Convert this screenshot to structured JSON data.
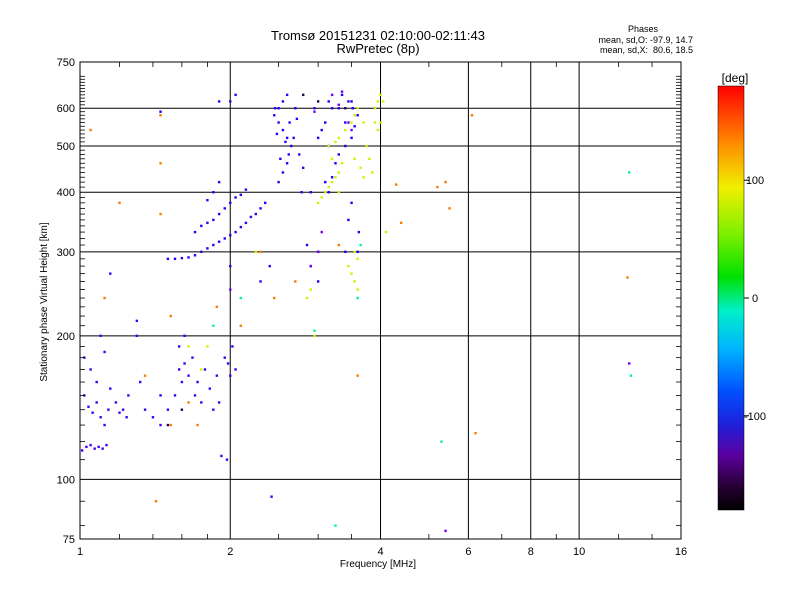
{
  "chart_data": {
    "type": "scatter",
    "title": "Tromsø 20151231 02:10:00-02:11:43",
    "subtitle": "RwPretec (8p)",
    "xlabel": "Frequency [MHz]",
    "ylabel": "Stationary phase Virtual Height [km]",
    "xscale": "log",
    "yscale": "log",
    "xlim": [
      1,
      16
    ],
    "ylim": [
      75,
      750
    ],
    "xticks": [
      1,
      2,
      4,
      6,
      8,
      10,
      16
    ],
    "yticks": [
      75,
      100,
      200,
      300,
      400,
      500,
      600,
      750
    ],
    "grid": true,
    "stats": {
      "heading": "Phases",
      "line1": "mean, sd,O: -97.9, 14.7",
      "line2": "mean, sd,X:  80.6, 18.5"
    },
    "colorbar": {
      "label": "[deg]",
      "range": [
        -180,
        180
      ],
      "ticks": [
        100,
        0,
        -100
      ],
      "colormap": "rainbow"
    },
    "point_groups": [
      {
        "phase": -110,
        "points": [
          [
            1.01,
            115
          ],
          [
            1.03,
            117
          ],
          [
            1.05,
            118
          ],
          [
            1.07,
            116
          ],
          [
            1.09,
            117
          ],
          [
            1.11,
            116
          ],
          [
            1.13,
            118
          ],
          [
            1.02,
            150
          ],
          [
            1.04,
            142
          ],
          [
            1.06,
            138
          ],
          [
            1.08,
            145
          ],
          [
            1.1,
            135
          ],
          [
            1.12,
            130
          ],
          [
            1.14,
            140
          ],
          [
            1.05,
            170
          ],
          [
            1.08,
            160
          ],
          [
            1.15,
            155
          ],
          [
            1.18,
            145
          ],
          [
            1.2,
            138
          ],
          [
            1.22,
            140
          ],
          [
            1.24,
            135
          ],
          [
            1.25,
            150
          ],
          [
            1.1,
            200
          ],
          [
            1.12,
            185
          ],
          [
            1.02,
            180
          ],
          [
            1.15,
            270
          ],
          [
            1.32,
            160
          ],
          [
            1.35,
            140
          ],
          [
            1.4,
            135
          ],
          [
            1.3,
            215
          ],
          [
            1.3,
            200
          ],
          [
            1.45,
            130
          ],
          [
            1.5,
            140
          ],
          [
            1.55,
            150
          ],
          [
            1.58,
            170
          ],
          [
            1.6,
            160
          ],
          [
            1.62,
            175
          ],
          [
            1.65,
            165
          ],
          [
            1.68,
            180
          ],
          [
            1.7,
            150
          ],
          [
            1.72,
            160
          ],
          [
            1.75,
            145
          ],
          [
            1.78,
            170
          ],
          [
            1.82,
            155
          ],
          [
            1.85,
            140
          ],
          [
            1.88,
            165
          ],
          [
            1.9,
            145
          ],
          [
            1.95,
            180
          ],
          [
            1.98,
            175
          ],
          [
            2.0,
            165
          ],
          [
            2.02,
            190
          ],
          [
            2.05,
            170
          ],
          [
            1.92,
            112
          ],
          [
            1.97,
            110
          ],
          [
            1.62,
            200
          ],
          [
            1.58,
            190
          ],
          [
            2.42,
            92
          ]
        ]
      },
      {
        "phase": -105,
        "points": [
          [
            1.5,
            290
          ],
          [
            1.55,
            290
          ],
          [
            1.6,
            291
          ],
          [
            1.65,
            292
          ],
          [
            1.7,
            295
          ],
          [
            1.75,
            300
          ],
          [
            1.8,
            305
          ],
          [
            1.85,
            310
          ],
          [
            1.9,
            315
          ],
          [
            1.95,
            320
          ],
          [
            2.0,
            325
          ],
          [
            2.05,
            330
          ],
          [
            2.1,
            338
          ],
          [
            2.15,
            345
          ],
          [
            2.2,
            355
          ],
          [
            2.25,
            360
          ],
          [
            2.3,
            370
          ],
          [
            2.35,
            380
          ],
          [
            1.7,
            330
          ],
          [
            1.75,
            340
          ],
          [
            1.8,
            345
          ],
          [
            1.85,
            350
          ],
          [
            1.9,
            360
          ],
          [
            1.95,
            370
          ],
          [
            2.0,
            380
          ],
          [
            2.05,
            390
          ],
          [
            2.1,
            395
          ],
          [
            2.15,
            405
          ],
          [
            1.8,
            385
          ],
          [
            1.85,
            400
          ],
          [
            1.9,
            420
          ],
          [
            2.5,
            420
          ],
          [
            2.55,
            440
          ],
          [
            2.6,
            460
          ],
          [
            2.62,
            480
          ],
          [
            2.65,
            500
          ],
          [
            2.6,
            520
          ],
          [
            2.55,
            540
          ],
          [
            2.5,
            560
          ],
          [
            2.45,
            580
          ],
          [
            2.5,
            600
          ],
          [
            2.55,
            620
          ],
          [
            2.6,
            640
          ],
          [
            2.52,
            470
          ],
          [
            2.58,
            510
          ],
          [
            2.63,
            560
          ],
          [
            2.48,
            530
          ],
          [
            2.46,
            600
          ],
          [
            2.7,
            600
          ],
          [
            2.72,
            570
          ],
          [
            2.68,
            520
          ],
          [
            2.75,
            480
          ],
          [
            2.8,
            450
          ],
          [
            2.78,
            400
          ],
          [
            2.9,
            400
          ],
          [
            2.95,
            600
          ],
          [
            2.0,
            620
          ],
          [
            2.05,
            640
          ],
          [
            1.9,
            620
          ],
          [
            2.3,
            260
          ],
          [
            2.4,
            280
          ],
          [
            2.0,
            280
          ],
          [
            1.45,
            150
          ]
        ]
      },
      {
        "phase": -100,
        "points": [
          [
            3.1,
            420
          ],
          [
            3.15,
            400
          ],
          [
            3.2,
            430
          ],
          [
            3.25,
            460
          ],
          [
            3.3,
            480
          ],
          [
            3.4,
            500
          ],
          [
            3.5,
            520
          ],
          [
            3.55,
            550
          ],
          [
            3.6,
            580
          ],
          [
            3.45,
            620
          ],
          [
            3.35,
            640
          ],
          [
            3.2,
            600
          ],
          [
            3.1,
            560
          ],
          [
            3.05,
            540
          ],
          [
            3.0,
            520
          ],
          [
            3.15,
            500
          ],
          [
            3.3,
            600
          ],
          [
            3.4,
            560
          ],
          [
            3.5,
            620
          ],
          [
            3.52,
            600
          ],
          [
            3.5,
            380
          ],
          [
            3.45,
            350
          ],
          [
            3.4,
            300
          ],
          [
            2.85,
            310
          ],
          [
            2.9,
            280
          ],
          [
            3.0,
            260
          ],
          [
            3.6,
            300
          ],
          [
            3.62,
            330
          ],
          [
            3.0,
            300
          ],
          [
            3.15,
            620
          ],
          [
            1.45,
            590
          ]
        ]
      },
      {
        "phase": -125,
        "points": [
          [
            2.0,
            250
          ],
          [
            3.35,
            650
          ],
          [
            3.45,
            560
          ],
          [
            3.5,
            540
          ],
          [
            3.2,
            640
          ],
          [
            3.3,
            610
          ],
          [
            2.95,
            590
          ],
          [
            3.0,
            300
          ],
          [
            3.05,
            330
          ],
          [
            5.4,
            78
          ],
          [
            12.6,
            175
          ],
          [
            2.9,
            280
          ]
        ]
      },
      {
        "phase": 100,
        "points": [
          [
            3.0,
            380
          ],
          [
            3.05,
            390
          ],
          [
            3.1,
            400
          ],
          [
            3.15,
            410
          ],
          [
            3.2,
            420
          ],
          [
            3.25,
            430
          ],
          [
            3.3,
            440
          ],
          [
            3.35,
            460
          ],
          [
            3.2,
            470
          ],
          [
            3.15,
            500
          ],
          [
            3.25,
            510
          ],
          [
            3.3,
            520
          ],
          [
            3.4,
            540
          ],
          [
            3.5,
            560
          ],
          [
            3.55,
            580
          ],
          [
            3.6,
            600
          ],
          [
            3.7,
            560
          ],
          [
            3.75,
            500
          ],
          [
            3.8,
            470
          ],
          [
            3.85,
            440
          ],
          [
            3.7,
            430
          ],
          [
            3.65,
            450
          ],
          [
            3.55,
            470
          ],
          [
            3.9,
            600
          ],
          [
            3.95,
            620
          ],
          [
            4.0,
            640
          ],
          [
            4.05,
            620
          ],
          [
            3.9,
            560
          ],
          [
            3.95,
            540
          ],
          [
            4.0,
            560
          ],
          [
            4.1,
            330
          ],
          [
            3.3,
            400
          ],
          [
            2.85,
            240
          ],
          [
            2.9,
            250
          ],
          [
            3.45,
            280
          ],
          [
            3.5,
            270
          ],
          [
            3.55,
            260
          ],
          [
            3.6,
            250
          ],
          [
            3.6,
            290
          ],
          [
            3.55,
            300
          ],
          [
            2.25,
            300
          ],
          [
            2.95,
            200
          ],
          [
            1.65,
            190
          ],
          [
            1.8,
            190
          ],
          [
            1.75,
            170
          ]
        ]
      },
      {
        "phase": 145,
        "points": [
          [
            1.05,
            540
          ],
          [
            1.45,
            580
          ],
          [
            1.45,
            460
          ],
          [
            1.45,
            360
          ],
          [
            1.52,
            220
          ],
          [
            1.35,
            165
          ],
          [
            1.42,
            90
          ],
          [
            1.2,
            380
          ],
          [
            1.12,
            240
          ],
          [
            1.65,
            145
          ],
          [
            1.52,
            130
          ],
          [
            1.88,
            230
          ],
          [
            2.1,
            210
          ],
          [
            2.7,
            260
          ],
          [
            3.3,
            310
          ],
          [
            4.3,
            415
          ],
          [
            4.4,
            345
          ],
          [
            5.2,
            410
          ],
          [
            5.4,
            420
          ],
          [
            5.5,
            370
          ],
          [
            6.1,
            580
          ],
          [
            6.2,
            125
          ],
          [
            12.5,
            265
          ],
          [
            3.6,
            165
          ],
          [
            2.3,
            300
          ],
          [
            2.45,
            240
          ],
          [
            1.72,
            130
          ]
        ]
      },
      {
        "phase": -150,
        "points": [
          [
            1.5,
            130
          ],
          [
            1.6,
            140
          ],
          [
            2.8,
            640
          ],
          [
            3.4,
            600
          ],
          [
            3.0,
            620
          ]
        ]
      },
      {
        "phase": 0,
        "points": [
          [
            1.85,
            210
          ],
          [
            2.95,
            205
          ],
          [
            3.6,
            240
          ],
          [
            3.65,
            310
          ],
          [
            3.25,
            80
          ],
          [
            5.3,
            120
          ],
          [
            12.6,
            440
          ],
          [
            12.7,
            165
          ],
          [
            2.1,
            240
          ]
        ]
      }
    ]
  }
}
